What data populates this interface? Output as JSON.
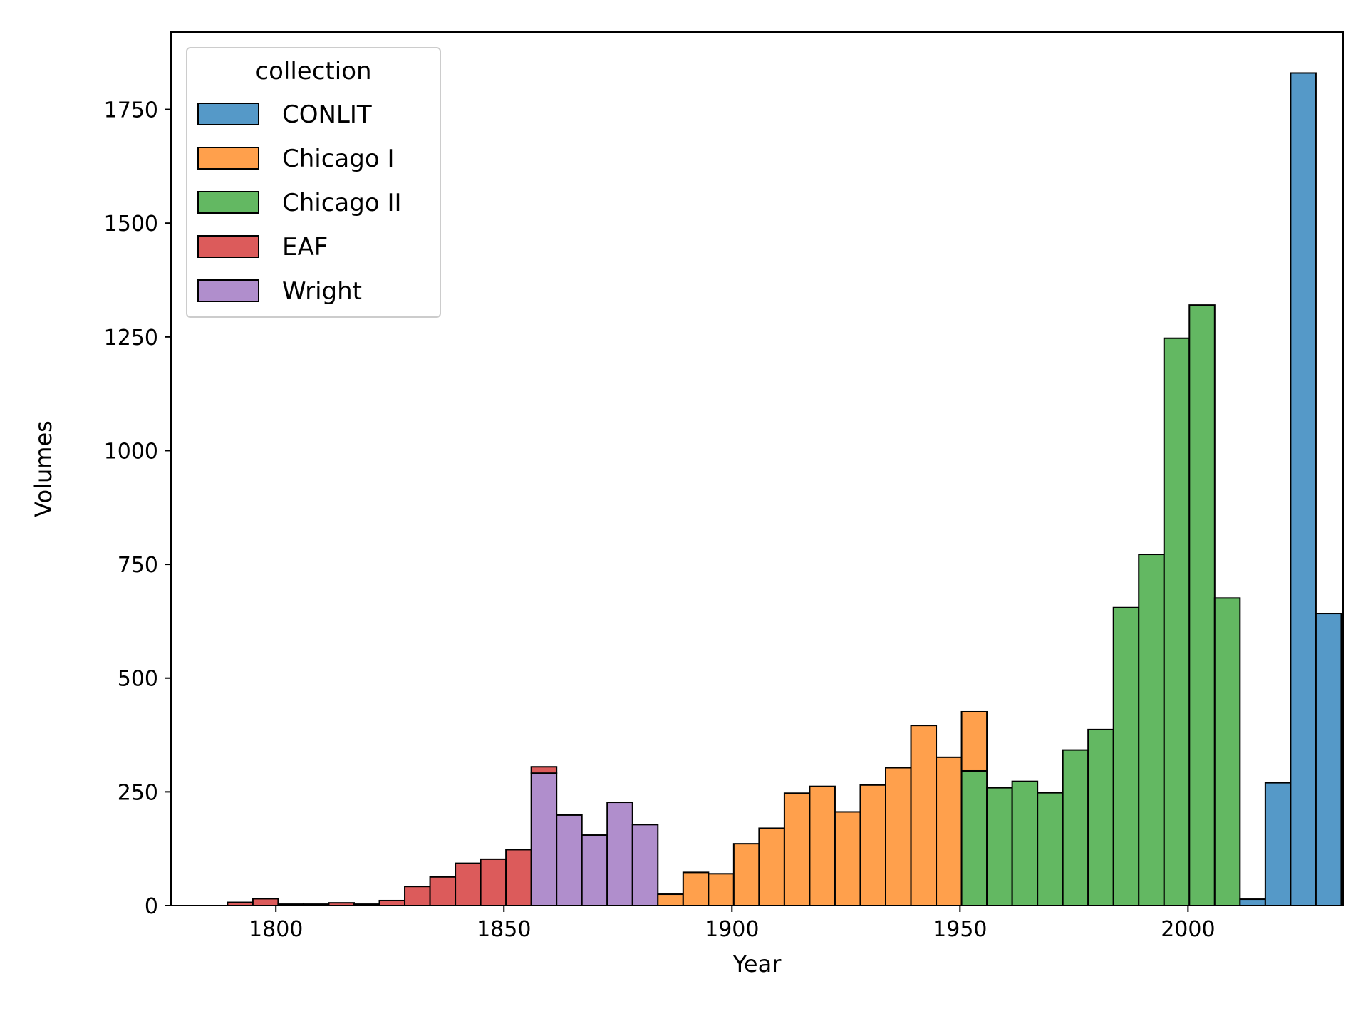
{
  "chart_data": {
    "type": "bar",
    "subtype": "stacked-histogram",
    "xlabel": "Year",
    "ylabel": "Volumes",
    "xlim": [
      1777,
      2034
    ],
    "ylim": [
      0,
      1920
    ],
    "xticks": [
      1800,
      1850,
      1900,
      1950,
      2000
    ],
    "yticks": [
      0,
      250,
      500,
      750,
      1000,
      1250,
      1500,
      1750
    ],
    "legend": {
      "title": "collection",
      "placement": "top-left"
    },
    "bin_start": 1789.4,
    "bin_width": 5.55,
    "stack_order": [
      "Wright",
      "EAF",
      "Chicago II",
      "Chicago I",
      "CONLIT"
    ],
    "series": [
      {
        "name": "CONLIT",
        "color": "#5599c8",
        "values": [
          0,
          0,
          0,
          0,
          0,
          0,
          0,
          0,
          0,
          0,
          0,
          0,
          0,
          0,
          0,
          0,
          0,
          0,
          0,
          0,
          0,
          0,
          0,
          0,
          0,
          0,
          0,
          0,
          0,
          0,
          0,
          0,
          0,
          0,
          0,
          0,
          0,
          0,
          0,
          0,
          14,
          270,
          1830,
          642
        ]
      },
      {
        "name": "Chicago I",
        "color": "#ffa04c",
        "values": [
          0,
          0,
          0,
          0,
          0,
          0,
          0,
          0,
          0,
          0,
          0,
          0,
          0,
          0,
          0,
          0,
          0,
          25,
          73,
          70,
          136,
          170,
          247,
          262,
          206,
          265,
          303,
          396,
          326,
          130,
          0,
          0,
          0,
          0,
          0,
          0,
          0,
          0,
          0,
          0,
          0,
          0,
          0,
          0
        ]
      },
      {
        "name": "Chicago II",
        "color": "#63b862",
        "values": [
          0,
          0,
          0,
          0,
          0,
          0,
          0,
          0,
          0,
          0,
          0,
          0,
          0,
          0,
          0,
          0,
          0,
          0,
          0,
          0,
          0,
          0,
          0,
          0,
          0,
          0,
          0,
          0,
          0,
          296,
          259,
          273,
          248,
          342,
          387,
          655,
          772,
          1247,
          1320,
          676,
          0,
          0,
          0,
          0
        ]
      },
      {
        "name": "EAF",
        "color": "#dc5b5b",
        "values": [
          7,
          15,
          3,
          3,
          6,
          3,
          11,
          42,
          63,
          93,
          102,
          123,
          14,
          0,
          0,
          0,
          0,
          0,
          0,
          0,
          0,
          0,
          0,
          0,
          0,
          0,
          0,
          0,
          0,
          0,
          0,
          0,
          0,
          0,
          0,
          0,
          0,
          0,
          0,
          0,
          0,
          0,
          0,
          0
        ]
      },
      {
        "name": "Wright",
        "color": "#b08ecc",
        "values": [
          0,
          0,
          0,
          0,
          0,
          0,
          0,
          0,
          0,
          0,
          0,
          0,
          291,
          199,
          155,
          227,
          178,
          0,
          0,
          0,
          0,
          0,
          0,
          0,
          0,
          0,
          0,
          0,
          0,
          0,
          0,
          0,
          0,
          0,
          0,
          0,
          0,
          0,
          0,
          0,
          0,
          0,
          0,
          0
        ]
      }
    ]
  }
}
